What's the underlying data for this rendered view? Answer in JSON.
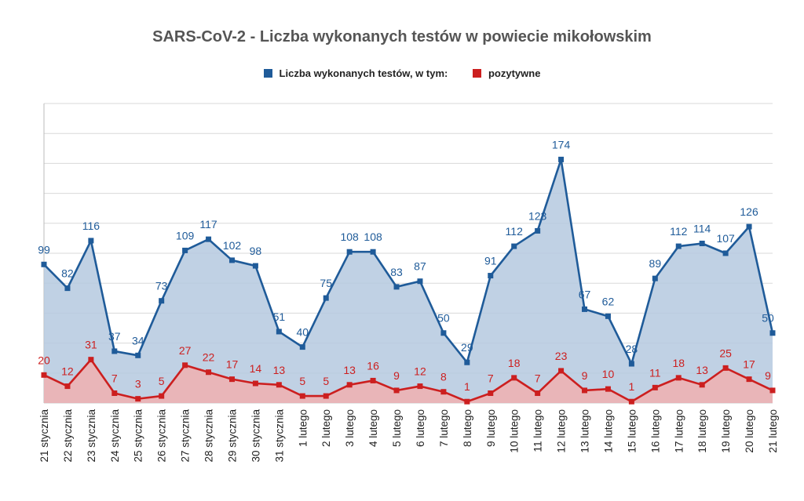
{
  "chart_data": {
    "type": "area",
    "title": "SARS-CoV-2 - Liczba wykonanych testów w powiecie mikołowskim",
    "xlabel": "",
    "ylabel": "",
    "legend_position": "top",
    "grid": true,
    "categories": [
      "21 stycznia",
      "22 stycznia",
      "23 stycznia",
      "24 stycznia",
      "25 stycznia",
      "26 stycznia",
      "27 stycznia",
      "28 stycznia",
      "29 stycznia",
      "30 stycznia",
      "31 stycznia",
      "1 lutego",
      "2 lutego",
      "3 lutego",
      "4 lutego",
      "5 lutego",
      "6 lutego",
      "7 lutego",
      "8 lutego",
      "9 lutego",
      "10 lutego",
      "11 lutego",
      "12 lutego",
      "13 lutego",
      "14 lutego",
      "15 lutego",
      "16 lutego",
      "17 lutego",
      "18 lutego",
      "19 lutego",
      "20 lutego",
      "21 lutego"
    ],
    "series": [
      {
        "name": "Liczba wykonanych testów, w tym:",
        "color": "#1f5b99",
        "fill": "#b5c9df",
        "values": [
          99,
          82,
          116,
          37,
          34,
          73,
          109,
          117,
          102,
          98,
          51,
          40,
          75,
          108,
          108,
          83,
          87,
          50,
          29,
          91,
          112,
          123,
          174,
          67,
          62,
          28,
          89,
          112,
          114,
          107,
          126,
          50
        ]
      },
      {
        "name": "pozytywne",
        "color": "#cc1f1f",
        "fill": "#f0b0b0",
        "values": [
          20,
          12,
          31,
          7,
          3,
          5,
          27,
          22,
          17,
          14,
          13,
          5,
          5,
          13,
          16,
          9,
          12,
          8,
          1,
          7,
          18,
          7,
          23,
          9,
          10,
          1,
          11,
          18,
          13,
          25,
          17,
          9
        ]
      }
    ]
  }
}
